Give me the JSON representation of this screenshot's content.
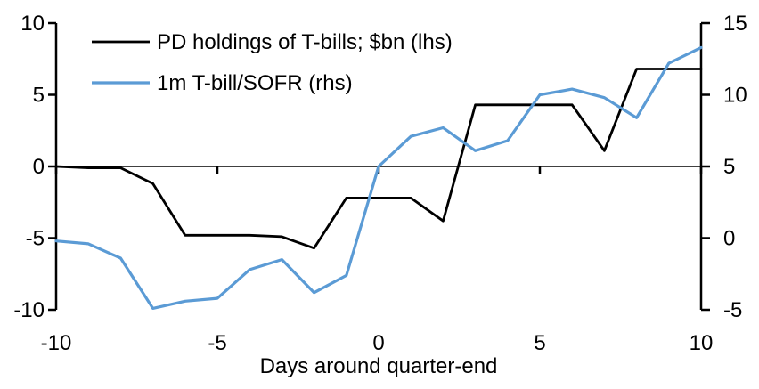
{
  "legend": {
    "items": [
      {
        "label": "PD holdings of T-bills; $bn (lhs)",
        "color": "#000000"
      },
      {
        "label": "1m T-bill/SOFR (rhs)",
        "color": "#5B9BD5"
      }
    ]
  },
  "x_axis": {
    "title": "Days around quarter-end",
    "tick_labels": [
      "-10",
      "-5",
      "0",
      "5",
      "10"
    ],
    "tick_values": [
      -10,
      -5,
      0,
      5,
      10
    ]
  },
  "left_axis": {
    "tick_labels": [
      "10",
      "5",
      "0",
      "-5",
      "-10"
    ],
    "tick_values": [
      10,
      5,
      0,
      -5,
      -10
    ]
  },
  "right_axis": {
    "tick_labels": [
      "15",
      "10",
      "5",
      "0",
      "-5"
    ],
    "tick_values": [
      15,
      10,
      5,
      0,
      -5
    ]
  },
  "chart_data": {
    "type": "line",
    "xlabel": "Days around quarter-end",
    "x_range": [
      -10,
      10
    ],
    "left_ylim": [
      -10,
      10
    ],
    "right_ylim": [
      -5,
      15
    ],
    "grid": false,
    "legend_position": "top-left",
    "zero_axis_line": true,
    "x": [
      -10,
      -9,
      -8,
      -7,
      -6,
      -5,
      -4,
      -3,
      -2,
      -1,
      0,
      1,
      2,
      3,
      4,
      5,
      6,
      7,
      8,
      9,
      10
    ],
    "series": [
      {
        "name": "PD holdings of T-bills; $bn (lhs)",
        "axis": "left",
        "color": "#000000",
        "stroke_width": 2.8,
        "values": [
          0,
          -0.1,
          -0.1,
          -1.2,
          -4.8,
          -4.8,
          -4.8,
          -4.9,
          -5.7,
          -2.2,
          -2.2,
          -2.2,
          -3.8,
          4.3,
          4.3,
          4.3,
          4.3,
          1.1,
          6.8,
          6.8,
          6.8
        ]
      },
      {
        "name": "1m T-bill/SOFR (rhs)",
        "axis": "right",
        "color": "#5B9BD5",
        "stroke_width": 3.2,
        "values": [
          -0.2,
          -0.4,
          -1.4,
          -4.9,
          -4.4,
          -4.2,
          -2.2,
          -1.5,
          -3.8,
          -2.6,
          5.0,
          7.1,
          7.7,
          6.1,
          6.8,
          10.0,
          10.4,
          9.8,
          8.4,
          12.2,
          13.3
        ]
      }
    ]
  }
}
